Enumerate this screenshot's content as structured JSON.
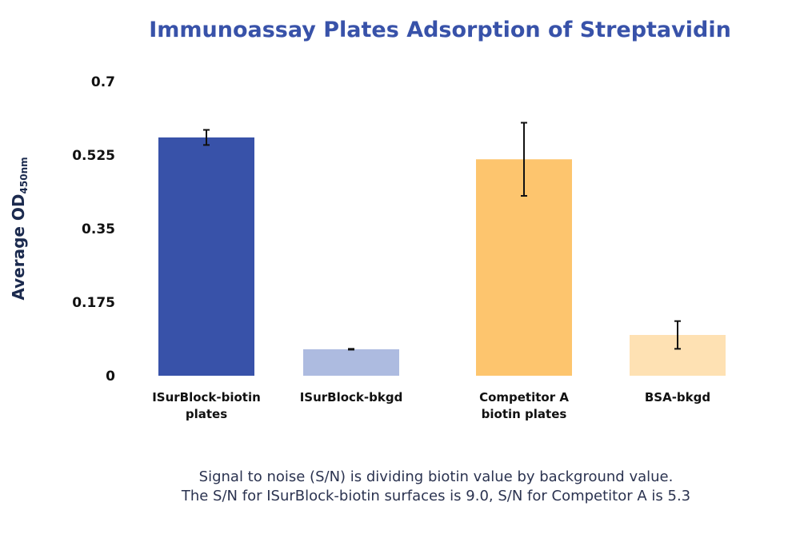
{
  "chart_data": {
    "type": "bar",
    "title": "Immunoassay Plates Adsorption of Streptavidin",
    "ylabel": "Average OD",
    "ylabel_subscript": "450nm",
    "xlabel": "",
    "ylim": [
      0,
      0.7
    ],
    "yticks": [
      "0",
      "0.175",
      "0.35",
      "0.525",
      "0.7"
    ],
    "grid": false,
    "categories": [
      [
        "ISurBlock-biotin",
        "plates"
      ],
      [
        "ISurBlock-bkgd"
      ],
      [
        "Competitor A",
        "biotin plates"
      ],
      [
        "BSA-bkgd"
      ]
    ],
    "values": [
      0.567,
      0.063,
      0.515,
      0.097
    ],
    "error_bars": [
      0.018,
      0.001,
      0.087,
      0.033
    ],
    "colors": [
      "#3852a9",
      "#adbbe0",
      "#fdc56e",
      "#fee1b3"
    ]
  },
  "footnote": {
    "line1": "Signal to noise (S/N) is dividing biotin value by background value.",
    "line2": "The S/N for ISurBlock-biotin surfaces is 9.0, S/N for Competitor A is 5.3"
  }
}
